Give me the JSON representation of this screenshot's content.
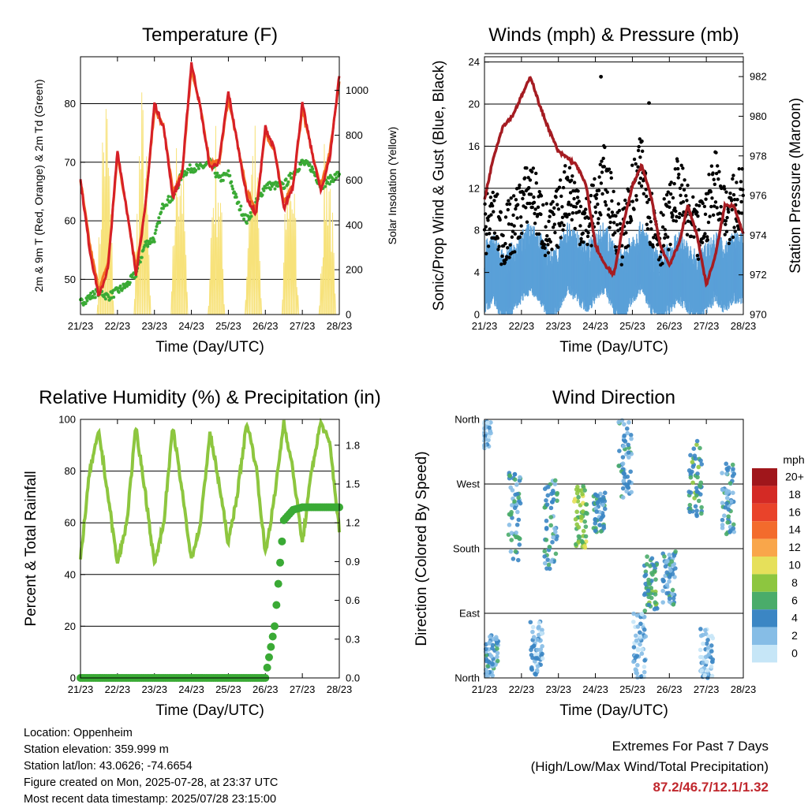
{
  "x_ticks": [
    "21/23",
    "22/23",
    "23/23",
    "24/23",
    "25/23",
    "26/23",
    "27/23",
    "28/23"
  ],
  "x_label": "Time (Day/UTC)",
  "colors": {
    "temp_red": "#d62027",
    "temp_orange": "#f36f21",
    "dewpoint_green": "#3aaa35",
    "solar_yellow": "#f7e27a",
    "wind_blue": "#5aa0d8",
    "gust_black": "#000000",
    "pressure_maroon": "#a51c22",
    "humidity_green": "#8dc63f",
    "rain_green": "#3aaa35",
    "extremes_red": "#c0272d"
  },
  "chart_data": [
    {
      "type": "line",
      "title": "Temperature (F)",
      "xlabel": "Time (Day/UTC)",
      "ylabel": "2m & 9m T (Red, Orange) & 2m Td (Green)",
      "ylabel_right": "Solar Insolation (Yellow)",
      "ylim": [
        44,
        88
      ],
      "yticks": [
        50,
        60,
        70,
        80
      ],
      "ylim_right": [
        0,
        1150
      ],
      "yticks_right": [
        0,
        200,
        400,
        600,
        800,
        1000
      ],
      "x": [
        0,
        0.25,
        0.5,
        0.75,
        1,
        1.25,
        1.5,
        1.75,
        2,
        2.25,
        2.5,
        2.75,
        3,
        3.25,
        3.5,
        3.75,
        4,
        4.25,
        4.5,
        4.75,
        5,
        5.25,
        5.5,
        5.75,
        6,
        6.25,
        6.5,
        6.75,
        7
      ],
      "series": [
        {
          "name": "2m T",
          "values": [
            67,
            55,
            47,
            52,
            72,
            62,
            51,
            62,
            80,
            76,
            64,
            68,
            87,
            79,
            69,
            70,
            82,
            73,
            64,
            61,
            76,
            72,
            62,
            66,
            80,
            72,
            65,
            71,
            85
          ]
        },
        {
          "name": "9m T",
          "values": [
            67,
            56,
            48,
            53,
            71,
            62,
            52,
            62,
            79,
            76,
            65,
            68,
            86,
            79,
            70,
            70,
            81,
            73,
            65,
            62,
            75,
            72,
            63,
            66,
            79,
            72,
            66,
            72,
            84
          ]
        },
        {
          "name": "2m Td",
          "values": [
            46,
            47,
            48,
            47,
            48,
            49,
            51,
            56,
            57,
            63,
            64,
            68,
            69,
            69,
            70,
            67,
            68,
            63,
            60,
            63,
            66,
            66,
            66,
            68,
            70,
            69,
            66,
            67,
            68
          ]
        },
        {
          "name": "Solar Insolation",
          "daily_peak": [
            1100,
            1050,
            980,
            900,
            950,
            880,
            900
          ]
        }
      ]
    },
    {
      "type": "line",
      "title": "Winds (mph) & Pressure (mb)",
      "xlabel": "Time (Day/UTC)",
      "ylabel": "Sonic/Prop Wind & Gust (Blue, Black)",
      "ylabel_right": "Station Pressure (Maroon)",
      "ylim": [
        0,
        24.5
      ],
      "yticks": [
        0,
        4,
        8,
        12,
        16,
        20,
        24
      ],
      "ylim_right": [
        970,
        983
      ],
      "yticks_right": [
        970,
        972,
        974,
        976,
        978,
        980,
        982
      ],
      "x": [
        0,
        0.25,
        0.5,
        0.75,
        1,
        1.25,
        1.5,
        1.75,
        2,
        2.25,
        2.5,
        2.75,
        3,
        3.25,
        3.5,
        3.75,
        4,
        4.25,
        4.5,
        4.75,
        5,
        5.25,
        5.5,
        5.75,
        6,
        6.25,
        6.5,
        6.75,
        7
      ],
      "series": [
        {
          "name": "Station Pressure",
          "values": [
            975.8,
            978.0,
            979.5,
            980.0,
            981.0,
            982.0,
            980.5,
            979.3,
            978.2,
            977.9,
            977.5,
            976.5,
            973.5,
            972.5,
            972.0,
            974.5,
            976.5,
            977.5,
            976.0,
            973.5,
            972.5,
            973.5,
            975.5,
            974.0,
            971.5,
            973.0,
            975.5,
            975.5,
            974.0
          ]
        },
        {
          "name": "Wind",
          "values": [
            4,
            5,
            3,
            4,
            5,
            6,
            5,
            3,
            4,
            6,
            5,
            4,
            5,
            6,
            4,
            3,
            5,
            6,
            4,
            3,
            4,
            5,
            4,
            3,
            4,
            5,
            4,
            5,
            5
          ]
        },
        {
          "name": "Gust",
          "values": [
            8,
            9,
            7,
            8,
            10,
            12,
            9,
            7,
            9,
            12,
            10,
            8,
            10,
            13,
            9,
            7,
            11,
            14,
            9,
            7,
            9,
            12,
            9,
            7,
            9,
            13,
            9,
            10,
            11
          ]
        }
      ]
    },
    {
      "type": "line",
      "title": "Relative Humidity (%) & Precipitation (in)",
      "xlabel": "Time (Day/UTC)",
      "ylabel": "Percent & Total Rainfall",
      "ylim": [
        0,
        100
      ],
      "yticks": [
        0,
        20,
        40,
        60,
        80,
        100
      ],
      "ylim_right": [
        0,
        2.0
      ],
      "yticks_right": [
        0.0,
        0.3,
        0.6,
        0.9,
        1.2,
        1.5,
        1.8
      ],
      "x": [
        0,
        0.25,
        0.5,
        0.75,
        1,
        1.25,
        1.5,
        1.75,
        2,
        2.25,
        2.5,
        2.75,
        3,
        3.25,
        3.5,
        3.75,
        4,
        4.25,
        4.5,
        4.75,
        5,
        5.25,
        5.5,
        5.75,
        6,
        6.25,
        6.5,
        6.75,
        7
      ],
      "series": [
        {
          "name": "Relative Humidity",
          "values": [
            46,
            80,
            95,
            70,
            44,
            60,
            97,
            72,
            44,
            60,
            97,
            72,
            46,
            60,
            95,
            75,
            52,
            72,
            99,
            82,
            48,
            70,
            99,
            80,
            52,
            80,
            99,
            90,
            57
          ]
        },
        {
          "name": "Total Rainfall",
          "values": [
            0,
            0,
            0,
            0,
            0,
            0,
            0,
            0,
            0,
            0,
            0,
            0,
            0,
            0,
            0,
            0,
            0,
            0,
            0,
            0,
            0,
            0.4,
            1.22,
            1.3,
            1.32,
            1.32,
            1.32,
            1.32,
            1.32
          ]
        }
      ]
    },
    {
      "type": "scatter",
      "title": "Wind Direction",
      "xlabel": "Time (Day/UTC)",
      "ylabel": "Direction (Colored By Speed)",
      "yticks_labels": [
        "North",
        "East",
        "South",
        "West",
        "North"
      ],
      "ylim": [
        0,
        360
      ],
      "colorbar": {
        "title": "mph",
        "labels": [
          "20+",
          "18",
          "16",
          "14",
          "12",
          "10",
          "8",
          "6",
          "4",
          "2",
          "0"
        ],
        "colors": [
          "#a0161b",
          "#d42a25",
          "#e9432a",
          "#f36b2c",
          "#f9a64a",
          "#e6e05a",
          "#8dc63f",
          "#4aac6a",
          "#3b86c4",
          "#86bde6",
          "#c6e6f7"
        ]
      },
      "clusters": [
        {
          "day": 0.0,
          "dir_min": 320,
          "dir_max": 360,
          "speed": 2
        },
        {
          "day": 0.2,
          "dir_min": 0,
          "dir_max": 60,
          "speed": 4
        },
        {
          "day": 0.8,
          "dir_min": 160,
          "dir_max": 290,
          "speed": 5
        },
        {
          "day": 1.4,
          "dir_min": 0,
          "dir_max": 80,
          "speed": 3
        },
        {
          "day": 1.8,
          "dir_min": 150,
          "dir_max": 280,
          "speed": 5
        },
        {
          "day": 2.6,
          "dir_min": 180,
          "dir_max": 270,
          "speed": 8
        },
        {
          "day": 3.1,
          "dir_min": 200,
          "dir_max": 260,
          "speed": 5
        },
        {
          "day": 3.8,
          "dir_min": 250,
          "dir_max": 360,
          "speed": 4
        },
        {
          "day": 4.2,
          "dir_min": 0,
          "dir_max": 90,
          "speed": 3
        },
        {
          "day": 4.5,
          "dir_min": 90,
          "dir_max": 170,
          "speed": 6
        },
        {
          "day": 5.0,
          "dir_min": 100,
          "dir_max": 180,
          "speed": 4
        },
        {
          "day": 5.7,
          "dir_min": 220,
          "dir_max": 330,
          "speed": 6
        },
        {
          "day": 6.0,
          "dir_min": 0,
          "dir_max": 70,
          "speed": 2
        },
        {
          "day": 6.6,
          "dir_min": 200,
          "dir_max": 300,
          "speed": 4
        }
      ]
    }
  ],
  "meta": {
    "location": "Location: Oppenheim",
    "elevation": "Station elevation: 359.999 m",
    "latlon": "Station lat/lon: 43.0626; -74.6654",
    "created": "Figure created on Mon, 2025-07-28, at 23:37 UTC",
    "recent": "Most recent data timestamp: 2025/07/28 23:15:00"
  },
  "extremes": {
    "line1": "Extremes For Past 7 Days",
    "line2": "(High/Low/Max Wind/Total Precipitation)",
    "values": "87.2/46.7/12.1/1.32"
  }
}
